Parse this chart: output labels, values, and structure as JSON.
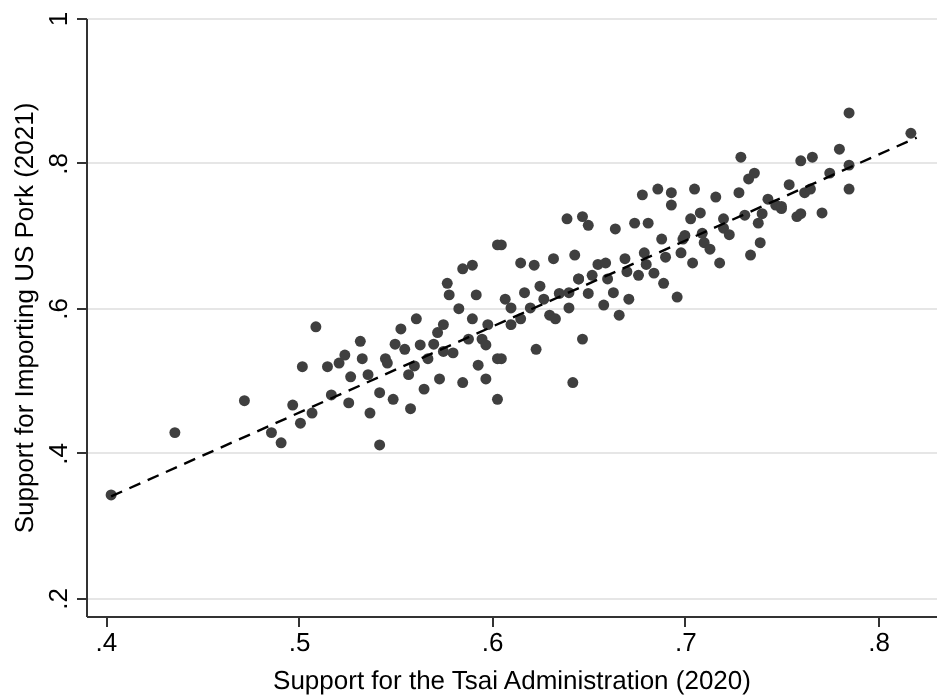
{
  "chart_data": {
    "type": "scatter",
    "xlabel": "Support for the Tsai Administration (2020)",
    "ylabel": "Support for Importing US Pork (2021)",
    "xlim": [
      0.39,
      0.83
    ],
    "ylim": [
      0.175,
      1.0
    ],
    "xticks": [
      {
        "value": 0.4,
        "label": ".4"
      },
      {
        "value": 0.5,
        "label": ".5"
      },
      {
        "value": 0.6,
        "label": ".6"
      },
      {
        "value": 0.7,
        "label": ".7"
      },
      {
        "value": 0.8,
        "label": ".8"
      }
    ],
    "yticks": [
      {
        "value": 0.2,
        "label": ".2"
      },
      {
        "value": 0.4,
        "label": ".4"
      },
      {
        "value": 0.6,
        "label": ".6"
      },
      {
        "value": 0.8,
        "label": ".8"
      },
      {
        "value": 1,
        "label": "1"
      }
    ],
    "grid": "y",
    "series": [
      {
        "color": "#3f3f3f",
        "marker": "circle",
        "x": [
          0.403,
          0.436,
          0.472,
          0.486,
          0.491,
          0.497,
          0.501,
          0.502,
          0.507,
          0.509,
          0.515,
          0.517,
          0.521,
          0.524,
          0.526,
          0.527,
          0.532,
          0.533,
          0.536,
          0.537,
          0.542,
          0.542,
          0.545,
          0.546,
          0.549,
          0.55,
          0.553,
          0.555,
          0.557,
          0.558,
          0.56,
          0.561,
          0.563,
          0.565,
          0.567,
          0.57,
          0.572,
          0.573,
          0.575,
          0.575,
          0.577,
          0.578,
          0.58,
          0.583,
          0.585,
          0.585,
          0.588,
          0.59,
          0.59,
          0.592,
          0.593,
          0.595,
          0.597,
          0.597,
          0.598,
          0.603,
          0.603,
          0.603,
          0.605,
          0.605,
          0.607,
          0.61,
          0.61,
          0.615,
          0.615,
          0.617,
          0.62,
          0.622,
          0.623,
          0.625,
          0.627,
          0.63,
          0.632,
          0.633,
          0.635,
          0.639,
          0.64,
          0.64,
          0.642,
          0.643,
          0.645,
          0.645,
          0.647,
          0.647,
          0.65,
          0.65,
          0.652,
          0.655,
          0.658,
          0.659,
          0.66,
          0.663,
          0.664,
          0.666,
          0.669,
          0.67,
          0.671,
          0.674,
          0.676,
          0.678,
          0.679,
          0.68,
          0.681,
          0.684,
          0.686,
          0.688,
          0.689,
          0.69,
          0.693,
          0.693,
          0.696,
          0.698,
          0.699,
          0.7,
          0.703,
          0.704,
          0.705,
          0.708,
          0.709,
          0.71,
          0.713,
          0.716,
          0.718,
          0.72,
          0.72,
          0.723,
          0.728,
          0.729,
          0.731,
          0.733,
          0.734,
          0.736,
          0.738,
          0.739,
          0.74,
          0.743,
          0.747,
          0.75,
          0.75,
          0.754,
          0.758,
          0.76,
          0.76,
          0.762,
          0.765,
          0.766,
          0.771,
          0.775,
          0.78,
          0.785,
          0.785,
          0.785,
          0.817
        ],
        "values": [
          0.342,
          0.428,
          0.472,
          0.428,
          0.414,
          0.466,
          0.441,
          0.519,
          0.455,
          0.574,
          0.519,
          0.48,
          0.524,
          0.535,
          0.469,
          0.505,
          0.554,
          0.53,
          0.508,
          0.455,
          0.483,
          0.411,
          0.53,
          0.524,
          0.474,
          0.55,
          0.571,
          0.543,
          0.508,
          0.461,
          0.52,
          0.585,
          0.549,
          0.488,
          0.53,
          0.55,
          0.566,
          0.502,
          0.577,
          0.54,
          0.634,
          0.618,
          0.538,
          0.599,
          0.654,
          0.497,
          0.557,
          0.659,
          0.585,
          0.618,
          0.521,
          0.557,
          0.549,
          0.502,
          0.577,
          0.687,
          0.474,
          0.53,
          0.687,
          0.53,
          0.612,
          0.577,
          0.6,
          0.662,
          0.585,
          0.621,
          0.6,
          0.659,
          0.543,
          0.63,
          0.612,
          0.59,
          0.668,
          0.585,
          0.62,
          0.723,
          0.621,
          0.6,
          0.497,
          0.673,
          0.64,
          0.64,
          0.557,
          0.726,
          0.714,
          0.62,
          0.645,
          0.66,
          0.604,
          0.662,
          0.64,
          0.621,
          0.709,
          0.59,
          0.668,
          0.65,
          0.612,
          0.717,
          0.645,
          0.756,
          0.676,
          0.66,
          0.717,
          0.648,
          0.764,
          0.695,
          0.634,
          0.67,
          0.759,
          0.742,
          0.615,
          0.676,
          0.695,
          0.7,
          0.723,
          0.662,
          0.764,
          0.731,
          0.703,
          0.69,
          0.681,
          0.753,
          0.662,
          0.723,
          0.71,
          0.701,
          0.759,
          0.808,
          0.728,
          0.778,
          0.673,
          0.786,
          0.717,
          0.69,
          0.73,
          0.75,
          0.742,
          0.737,
          0.74,
          0.77,
          0.726,
          0.803,
          0.73,
          0.759,
          0.764,
          0.808,
          0.731,
          0.786,
          0.819,
          0.797,
          0.764,
          0.869,
          0.841
        ]
      },
      {
        "type": "line",
        "color": "#000000",
        "line_style": "dashed",
        "x": [
          0.403,
          0.82
        ],
        "values": [
          0.34,
          0.835
        ]
      }
    ]
  }
}
